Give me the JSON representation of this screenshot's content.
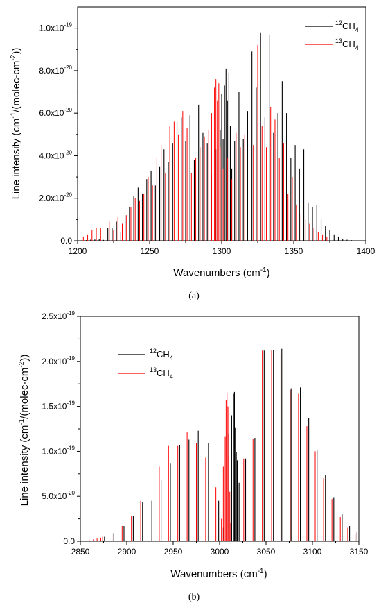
{
  "chart_data": [
    {
      "type": "line",
      "panel_label": "(a)",
      "xlabel_main": "Wavenumbers (cm",
      "xlabel_sup": "-1",
      "xlabel_end": ")",
      "ylabel_main": "Line intensity (cm",
      "ylabel_sup1": "-1",
      "ylabel_mid": "/(molec-cm",
      "ylabel_sup2": "-2",
      "ylabel_end": "))",
      "xlim": [
        1200,
        1400
      ],
      "ylim": [
        0,
        1.1e-19
      ],
      "x_ticks": [
        {
          "value": 1200,
          "label": "1200"
        },
        {
          "value": 1250,
          "label": "1250"
        },
        {
          "value": 1300,
          "label": "1300"
        },
        {
          "value": 1350,
          "label": "1350"
        },
        {
          "value": 1400,
          "label": "1400"
        }
      ],
      "y_ticks": [
        {
          "value": 0,
          "label": "0.0",
          "exp": ""
        },
        {
          "value": 2e-20,
          "label": "2.0x10",
          "exp": "-20"
        },
        {
          "value": 4e-20,
          "label": "4.0x10",
          "exp": "-20"
        },
        {
          "value": 6e-20,
          "label": "6.0x10",
          "exp": "-20"
        },
        {
          "value": 8e-20,
          "label": "8.0x10",
          "exp": "-20"
        },
        {
          "value": 1e-19,
          "label": "1.0x10",
          "exp": "-19"
        }
      ],
      "legend_position": "top-right",
      "series": [
        {
          "sup": "12",
          "main": "CH",
          "sub": "4",
          "color": "#000000",
          "x": [
            1203,
            1206,
            1209,
            1212,
            1215,
            1218,
            1221,
            1224,
            1227,
            1230,
            1233,
            1236,
            1239,
            1242,
            1245,
            1248,
            1251,
            1254,
            1257,
            1260,
            1263,
            1266,
            1269,
            1272,
            1275,
            1278,
            1281,
            1284,
            1287,
            1290,
            1293,
            1296,
            1299,
            1300,
            1301,
            1302,
            1303,
            1304,
            1305,
            1306,
            1307,
            1309,
            1312,
            1315,
            1318,
            1321,
            1324,
            1327,
            1330,
            1333,
            1336,
            1339,
            1342,
            1345,
            1348,
            1351,
            1354,
            1357,
            1360,
            1363,
            1366,
            1369,
            1372,
            1375,
            1378,
            1381,
            1384,
            1387,
            1390
          ],
          "y": [
            2e-22,
            3e-22,
            5e-22,
            6e-22,
            8e-22,
            4e-22,
            6e-21,
            6e-21,
            9e-21,
            4e-21,
            1.2e-20,
            1.6e-20,
            2.1e-20,
            2.5e-20,
            2.2e-20,
            2.9e-20,
            3.3e-20,
            2.6e-20,
            3.5e-20,
            4.3e-20,
            3.7e-20,
            4.6e-20,
            5.6e-20,
            5.8e-20,
            4.7e-20,
            5.9e-20,
            3.8e-20,
            6.4e-20,
            5.1e-20,
            4.6e-20,
            3.1e-20,
            4.3e-20,
            5.2e-20,
            6.9e-20,
            4.8e-20,
            7.3e-20,
            8.1e-20,
            6.6e-20,
            7.9e-20,
            5.4e-20,
            3.4e-20,
            4.7e-20,
            7e-20,
            4.8e-20,
            6.1e-20,
            8.9e-20,
            7.2e-20,
            9.8e-20,
            5.8e-20,
            9.7e-20,
            5.1e-20,
            6e-20,
            7.5e-20,
            6e-20,
            3.9e-20,
            4.5e-20,
            3.4e-20,
            4.3e-20,
            1.8e-20,
            1.6e-20,
            1.7e-20,
            1e-20,
            7e-21,
            5e-21,
            3e-21,
            2e-21,
            1e-21,
            5e-22,
            3e-22
          ]
        },
        {
          "sup": "13",
          "main": "CH",
          "sub": "4",
          "color": "#ff0000",
          "x": [
            1204,
            1207,
            1210,
            1213,
            1216,
            1219,
            1222,
            1225,
            1228,
            1231,
            1234,
            1237,
            1240,
            1243,
            1246,
            1249,
            1252,
            1255,
            1258,
            1261,
            1264,
            1267,
            1270,
            1273,
            1276,
            1279,
            1282,
            1285,
            1288,
            1291,
            1293,
            1294,
            1295,
            1296,
            1297,
            1298,
            1299,
            1301,
            1304,
            1307,
            1310,
            1313,
            1316,
            1319,
            1322,
            1325,
            1328,
            1331,
            1334,
            1337,
            1340,
            1343,
            1346,
            1349,
            1352,
            1355,
            1358,
            1361,
            1364,
            1367,
            1370,
            1373
          ],
          "y": [
            2e-21,
            3e-21,
            5e-21,
            6e-21,
            6e-21,
            4e-21,
            9e-21,
            5e-21,
            1.1e-20,
            8e-21,
            1.2e-20,
            1.6e-20,
            2e-20,
            1.9e-20,
            2.2e-20,
            3e-20,
            2.6e-20,
            3.9e-20,
            4.5e-20,
            3.2e-20,
            5.4e-20,
            5.6e-20,
            5e-20,
            6.1e-20,
            5.3e-20,
            3.2e-20,
            3.9e-20,
            4.4e-20,
            4.9e-20,
            5.2e-20,
            6e-20,
            5.6e-20,
            7.2e-20,
            7.6e-20,
            6.6e-20,
            7.4e-20,
            4.4e-20,
            3.4e-20,
            3.9e-20,
            2.9e-20,
            5.1e-20,
            4.4e-20,
            5e-20,
            9.2e-20,
            4.5e-20,
            9.2e-20,
            5.4e-20,
            4.4e-20,
            6.3e-20,
            5.7e-20,
            3.9e-20,
            4.6e-20,
            2.2e-20,
            3e-20,
            1.7e-20,
            1.3e-20,
            1e-20,
            8e-21,
            6e-21,
            4e-21,
            3e-21,
            2e-21
          ]
        }
      ]
    },
    {
      "type": "line",
      "panel_label": "(b)",
      "xlabel_main": "Wavenumbers (cm",
      "xlabel_sup": "-1",
      "xlabel_end": ")",
      "ylabel_main": "Line intensity (cm",
      "ylabel_sup1": "-1",
      "ylabel_mid": "/(molec-cm",
      "ylabel_sup2": "-2",
      "ylabel_end": "))",
      "xlim": [
        2850,
        3150
      ],
      "ylim": [
        0,
        2.5e-19
      ],
      "x_ticks": [
        {
          "value": 2850,
          "label": "2850"
        },
        {
          "value": 2900,
          "label": "2900"
        },
        {
          "value": 2950,
          "label": "2950"
        },
        {
          "value": 3000,
          "label": "3000"
        },
        {
          "value": 3050,
          "label": "3050"
        },
        {
          "value": 3100,
          "label": "3100"
        },
        {
          "value": 3150,
          "label": "3150"
        }
      ],
      "y_ticks": [
        {
          "value": 0,
          "label": "0.0",
          "exp": ""
        },
        {
          "value": 5e-20,
          "label": "5.0x10",
          "exp": "-20"
        },
        {
          "value": 1e-19,
          "label": "1.0x10",
          "exp": "-19"
        },
        {
          "value": 1.5e-19,
          "label": "1.5x10",
          "exp": "-19"
        },
        {
          "value": 2e-19,
          "label": "2.0x10",
          "exp": "-19"
        },
        {
          "value": 2.5e-19,
          "label": "2.5x10",
          "exp": "-19"
        }
      ],
      "legend_position": "top-left",
      "series": [
        {
          "sup": "12",
          "main": "CH",
          "sub": "4",
          "color": "#000000",
          "x": [
            2876,
            2886,
            2897,
            2907,
            2917,
            2927,
            2937,
            2947,
            2957,
            2967,
            2977,
            2988,
            2999,
            3004,
            3010,
            3013,
            3015,
            3016,
            3017,
            3018,
            3019,
            3021,
            3028,
            3038,
            3048,
            3058,
            3067,
            3077,
            3087,
            3096,
            3105,
            3114,
            3123,
            3132,
            3140,
            3148
          ],
          "y": [
            5e-21,
            9e-21,
            1.7e-20,
            2.8e-20,
            4.4e-20,
            4.5e-20,
            6.8e-20,
            8.7e-20,
            1.07e-19,
            1.13e-19,
            1.23e-19,
            1.09e-19,
            4.5e-20,
            1.5e-20,
            1.2e-19,
            1.4e-19,
            1.64e-19,
            1.66e-19,
            1.26e-19,
            9.9e-20,
            9e-20,
            6.5e-20,
            9.2e-20,
            1.15e-19,
            2.12e-19,
            2.13e-19,
            2.14e-19,
            1.7e-19,
            1.71e-19,
            1.37e-19,
            1.01e-19,
            7.4e-20,
            4.9e-20,
            3e-20,
            1.7e-20,
            1e-20
          ]
        },
        {
          "sup": "13",
          "main": "CH",
          "sub": "4",
          "color": "#ff0000",
          "x": [
            2860,
            2864,
            2868,
            2872,
            2874,
            2884,
            2895,
            2905,
            2915,
            2925,
            2935,
            2945,
            2955,
            2965,
            2975,
            2985,
            2996,
            3002,
            3004,
            3006,
            3007,
            3008,
            3009,
            3010,
            3011,
            3012,
            3026,
            3036,
            3046,
            3056,
            3066,
            3076,
            3085,
            3094,
            3103,
            3112,
            3121,
            3130,
            3138,
            3146
          ],
          "y": [
            1e-21,
            2e-21,
            3e-21,
            4e-21,
            5e-21,
            9e-21,
            1.7e-20,
            2.8e-20,
            4.5e-20,
            6.5e-20,
            8.3e-20,
            1.06e-19,
            1.06e-19,
            1.21e-19,
            1.09e-19,
            9.3e-20,
            6e-20,
            2.5e-20,
            8.3e-20,
            1.16e-19,
            1.57e-19,
            1.65e-19,
            1.5e-19,
            9.4e-20,
            5.5e-20,
            2e-20,
            9.2e-20,
            1.14e-19,
            2.12e-19,
            2.12e-19,
            2.09e-19,
            1.68e-19,
            1.64e-19,
            1.28e-19,
            1e-19,
            7e-20,
            4.7e-20,
            2.7e-20,
            1.5e-20,
            8e-21
          ]
        }
      ]
    }
  ]
}
